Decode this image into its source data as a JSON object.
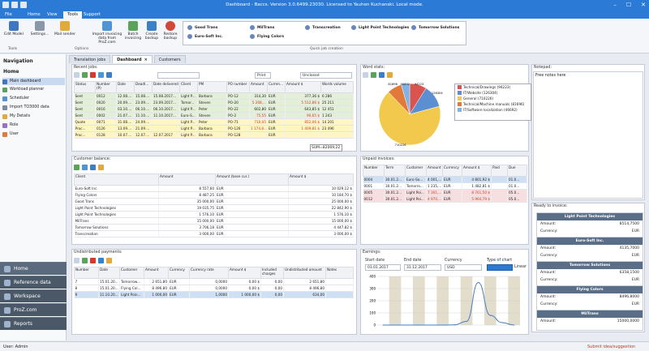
{
  "window": {
    "title": "Dashboard - Baccs. Version 3.0.6499.23030. Licensed to Yauhen Kuchanski. Local mode."
  },
  "menu": {
    "file": "File",
    "home": "Home",
    "view": "View",
    "tools": "Tools",
    "support": "Support"
  },
  "ribbon": {
    "edit_model": "Edit Model",
    "settings": "Settings...",
    "mail_sender": "Mail sender",
    "import_invoicing": "Import invoicing data from ProZ.com",
    "batch_invoicing": "Batch invoicing",
    "create_backup": "Create backup",
    "restore_backup": "Restore backup",
    "group_tools": "Tools",
    "group_options": "Options",
    "group_quick": "Quick job creation",
    "quick": [
      "Good Trans",
      "MilTrans",
      "Transcreation",
      "Light Point Technologies",
      "Tomorrow Solutions",
      "Euro-Soft Inc.",
      "Flying Colors"
    ]
  },
  "nav": {
    "title": "Navigation",
    "home": "Home",
    "items": [
      "Main dashboard",
      "Workload planner",
      "Scheduler",
      "Import TO3000 data",
      "My Details",
      "Role",
      "User"
    ],
    "bottom": [
      "Home",
      "Reference data",
      "Workspace",
      "ProZ.com",
      "Reports"
    ]
  },
  "tabs": [
    "Translation jobs",
    "Dashboard",
    "Customers"
  ],
  "recent_jobs": {
    "title": "Recent jobs:",
    "print": "Print",
    "filter": "Unclosed",
    "columns": [
      "Status",
      "Number (P)",
      "Date",
      "Deadl...",
      "Date delivered",
      "Client",
      "PM",
      "PO number",
      "Amount",
      "Curren...",
      "Amount $",
      "Words volume"
    ],
    "rows": [
      {
        "style": "r-green",
        "cells": [
          "Sent",
          "0012",
          "12.08....",
          "15.08....",
          "15.08.2017...",
          "Light P...",
          "Barbara",
          "PO-12",
          "314,30",
          "EUR",
          "377,36 $",
          "6 286"
        ]
      },
      {
        "style": "r-green",
        "cells": [
          "Sent",
          "0020",
          "20.09....",
          "23.09....",
          "23.09.2017...",
          "Tomor...",
          "Steven",
          "PO-20",
          "5 268,...",
          "EUR",
          "5 512,86 $",
          "25 211"
        ]
      },
      {
        "style": "r-green",
        "cells": [
          "Sent",
          "0016",
          "03.10....",
          "06.10....",
          "06.10.2017...",
          "Light P...",
          "Peter",
          "PO-22",
          "602,80",
          "EUR",
          "643,85 $",
          "12 451"
        ]
      },
      {
        "style": "r-green",
        "cells": [
          "Sent",
          "0002",
          "21.07....",
          "11.10....",
          "11.10.2017...",
          "Euro-S...",
          "Steven",
          "PO-2",
          "75,55",
          "EUR",
          "90,65 $",
          "1 243"
        ]
      },
      {
        "style": "r-yellow",
        "cells": [
          "Quote",
          "0071",
          "31.08....",
          "24.09....",
          "",
          "Light P...",
          "Peter",
          "PO-71",
          "710,05",
          "EUR",
          "852,06 $",
          "14 201"
        ]
      },
      {
        "style": "r-yellow",
        "cells": [
          "Proc...",
          "0126",
          "13.09....",
          "21.09....",
          "",
          "Light P...",
          "Barbara",
          "PO-126",
          "1 174,8...",
          "EUR",
          "1 409,81 $",
          "23 496"
        ]
      },
      {
        "style": "r-yellow",
        "cells": [
          "Proc...",
          "0128",
          "10.07....",
          "12.07....",
          "12.07.2017",
          "Light P...",
          "Barbara",
          "PO-128",
          "",
          "EUR",
          "",
          ""
        ]
      }
    ],
    "sum": "SUM=82069,22"
  },
  "word_stats": {
    "title": "Word stats:",
    "legend": [
      "Technical/Drawings (94223)",
      "IT/Website (126304)",
      "General (710226)",
      "Technical/Machine manuals (81696)",
      "IT/Software localization (46692)"
    ],
    "labels": [
      "81696",
      "46692",
      "94223",
      "710226",
      "126304"
    ]
  },
  "notepad": {
    "title": "Notepad:",
    "text": "Free notes here"
  },
  "customer_balance": {
    "title": "Customer balance:",
    "columns": [
      "Client",
      "Amount",
      "Amount (base cur.)",
      "Amount $"
    ],
    "rows": [
      [
        "Euro-Soft Inc.",
        "8 557,60",
        "EUR",
        "10 029,12 $"
      ],
      [
        "Flying Colors",
        "8 487,25",
        "EUR",
        "10 184,70 $"
      ],
      [
        "Good Trans",
        "35 000,00",
        "EUR",
        "25 000,00 $"
      ],
      [
        "Light Point Technologies",
        "19 035,75",
        "EUR",
        "22 842,90 $"
      ],
      [
        "Light Point Technologies",
        "1 576,10",
        "EUR",
        "1 576,10 $"
      ],
      [
        "MilTrans",
        "15 000,00",
        "EUR",
        "15 000,00 $"
      ],
      [
        "Tomorrow Solutions",
        "3 706,18",
        "EUR",
        "4 447,82 $"
      ],
      [
        "Transcreation",
        "3 000,00",
        "EUR",
        "3 000,00 $"
      ]
    ]
  },
  "unpaid_invoices": {
    "title": "Unpaid invoices:",
    "columns": [
      "Number",
      "Term",
      "Customer",
      "Amount",
      "Currency",
      "Amount $",
      "Paid",
      "Due"
    ],
    "rows": [
      {
        "style": "r-blue",
        "cells": [
          "0004",
          "30.01.2...",
          "Euro-So...",
          "4 001,...",
          "EUR",
          "4 801,92 $",
          "",
          "01.0..."
        ]
      },
      {
        "style": "",
        "cells": [
          "0001",
          "30.01.2...",
          "Tomorro...",
          "1 235,...",
          "EUR",
          "1 482,81 $",
          "",
          "01.0..."
        ]
      },
      {
        "style": "r-pink",
        "cells": [
          "0005",
          "30.01.2...",
          "Light Poi...",
          "7 301,...",
          "EUR",
          "8 761,50 $",
          "",
          "05.0..."
        ]
      },
      {
        "style": "r-pink",
        "cells": [
          "0012",
          "30.01.2...",
          "Light Poi...",
          "4 970,...",
          "EUR",
          "5 964,79 $",
          "",
          "05.0..."
        ]
      }
    ]
  },
  "ready_to_invoice": {
    "title": "Ready to invoice:",
    "amount_label": "Amount:",
    "currency_label": "Currency:",
    "items": [
      {
        "name": "Light Point Technologies",
        "amount": "8514,7500",
        "currency": "EUR"
      },
      {
        "name": "Euro-Soft Inc.",
        "amount": "4135,7000",
        "currency": "EUR"
      },
      {
        "name": "Tomorrow Solutions",
        "amount": "6358,1500",
        "currency": "EUR"
      },
      {
        "name": "Flying Colors",
        "amount": "8496,8000",
        "currency": "EUR"
      },
      {
        "name": "MilTrans",
        "amount": "15000,0000",
        "currency": "EUR"
      }
    ]
  },
  "undistributed": {
    "title": "Undistributed payments:",
    "columns": [
      "Number",
      "Date",
      "Customer",
      "Amount",
      "Currency",
      "Currency rate",
      "Amount $",
      "Included charges",
      "Undistributed amount",
      "Notes"
    ],
    "rows": [
      {
        "style": "",
        "cells": [
          "7",
          "15.01.20...",
          "Tomorrow...",
          "2 651,80",
          "EUR",
          "0,0000",
          "0,00 $",
          "0,00",
          "2 651,80",
          ""
        ]
      },
      {
        "style": "",
        "cells": [
          "8",
          "15.01.20...",
          "Flying Col...",
          "8 496,80",
          "EUR",
          "0,0000",
          "0,00 $",
          "0,00",
          "8 496,80",
          ""
        ]
      },
      {
        "style": "r-blue",
        "cells": [
          "9",
          "11.10.20...",
          "Light Poin...",
          "1 000,00",
          "EUR",
          "1,0000",
          "1 000,00 $",
          "0,00",
          "634,00",
          ""
        ]
      }
    ]
  },
  "earnings": {
    "title": "Earnings:",
    "start_label": "Start date",
    "end_label": "End date",
    "currency_label": "Currency",
    "type_label": "Type of chart",
    "start": "01.01.2017",
    "end": "31.12.2017",
    "currency": "USD",
    "linear": "Linear",
    "yticks": [
      "400",
      "300",
      "200",
      "100",
      "0"
    ]
  },
  "chart_data": [
    {
      "type": "pie",
      "title": "Word stats",
      "categories": [
        "Technical/Drawings",
        "IT/Website",
        "General",
        "Technical/Machine manuals",
        "IT/Software localization"
      ],
      "values": [
        94223,
        126304,
        710226,
        81696,
        46692
      ],
      "colors": [
        "#d9544f",
        "#5b8fd1",
        "#f2c94c",
        "#e0793a",
        "#7fb2e5"
      ]
    },
    {
      "type": "line",
      "title": "Earnings",
      "x": [
        1,
        2,
        3,
        4,
        5,
        6,
        7,
        8,
        9,
        10,
        11,
        12
      ],
      "values": [
        0,
        0,
        0,
        0,
        0,
        0,
        2,
        30,
        350,
        80,
        20,
        0
      ],
      "ylim": [
        0,
        400
      ],
      "color": "#4a7ebf"
    }
  ],
  "status": {
    "user": "User: Admin",
    "submit": "Submit idea/suggestion"
  }
}
